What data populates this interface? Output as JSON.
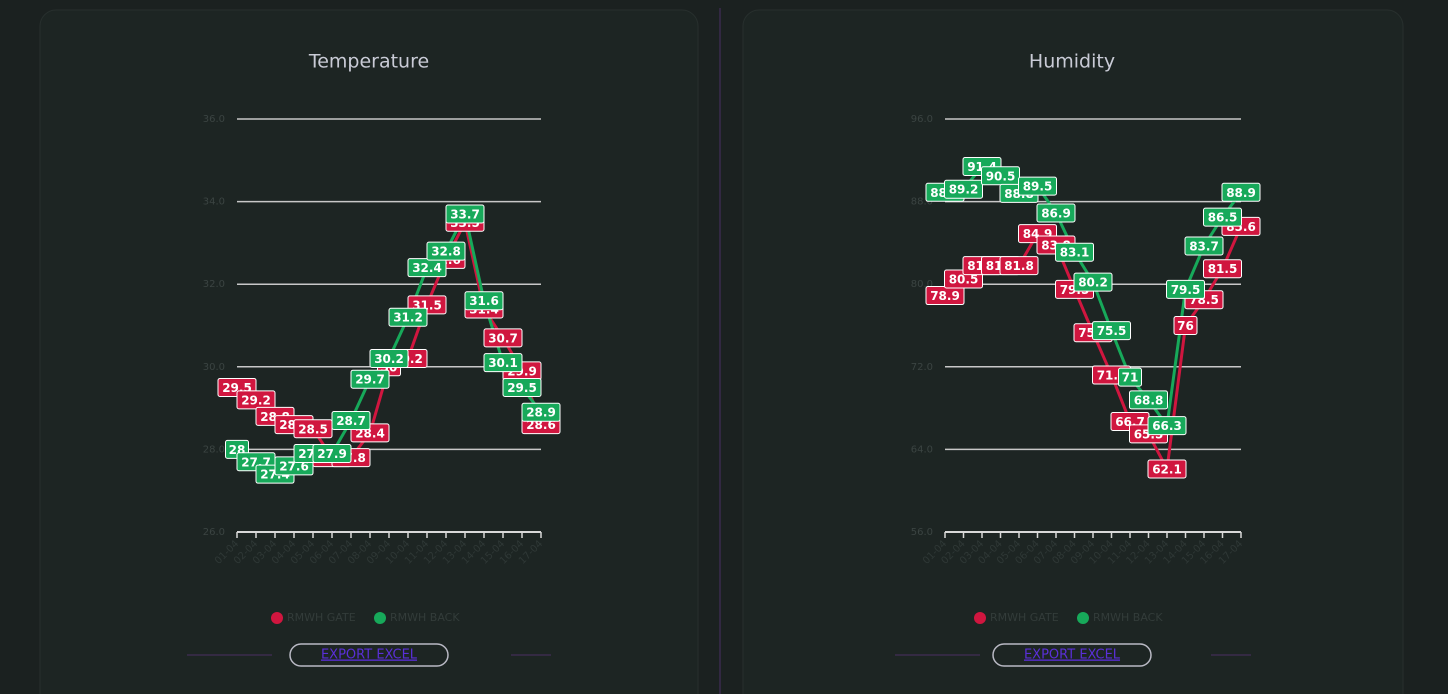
{
  "chart_data": [
    {
      "type": "line",
      "title": "Temperature",
      "categories": [
        "01-04",
        "02-04",
        "03-04",
        "04-04",
        "05-04",
        "06-04",
        "07-04",
        "08-04",
        "09-04",
        "10-04",
        "11-04",
        "12-04",
        "13-04",
        "14-04",
        "15-04",
        "16-04",
        "17-04"
      ],
      "series": [
        {
          "name": "RMWH GATE",
          "color": "#d0163f",
          "values": [
            29.5,
            29.2,
            28.8,
            28.6,
            28.5,
            27.8,
            27.8,
            28.4,
            30.0,
            30.2,
            31.5,
            32.6,
            33.5,
            31.4,
            30.7,
            29.9,
            28.6
          ]
        },
        {
          "name": "RMWH BACK",
          "color": "#17a95a",
          "values": [
            28.0,
            27.7,
            27.4,
            27.6,
            27.9,
            27.9,
            28.7,
            29.7,
            30.2,
            31.2,
            32.4,
            32.8,
            33.7,
            31.6,
            30.1,
            29.5,
            28.9
          ]
        }
      ],
      "ylim": [
        26,
        36
      ],
      "yticks": [
        {
          "value": 26,
          "label": "26.0"
        },
        {
          "value": 28,
          "label": "28.0"
        },
        {
          "value": 30,
          "label": "30.0"
        },
        {
          "value": 32,
          "label": "32.0"
        },
        {
          "value": 34,
          "label": "34.0"
        },
        {
          "value": 36,
          "label": "36.0"
        }
      ],
      "grid": true,
      "legend": "bottom"
    },
    {
      "type": "line",
      "title": "Humidity",
      "categories": [
        "01-04",
        "02-04",
        "03-04",
        "04-04",
        "05-04",
        "06-04",
        "07-04",
        "08-04",
        "09-04",
        "10-04",
        "11-04",
        "12-04",
        "13-04",
        "14-04",
        "15-04",
        "16-04",
        "17-04"
      ],
      "series": [
        {
          "name": "RMWH GATE",
          "color": "#d0163f",
          "values": [
            78.9,
            80.5,
            81.8,
            81.8,
            81.8,
            84.9,
            83.8,
            79.5,
            75.3,
            71.2,
            66.7,
            65.5,
            62.1,
            76.0,
            78.5,
            81.5,
            85.6
          ]
        },
        {
          "name": "RMWH BACK",
          "color": "#17a95a",
          "values": [
            88.9,
            89.2,
            91.4,
            90.5,
            88.8,
            89.5,
            86.9,
            83.1,
            80.2,
            75.5,
            71.0,
            68.8,
            66.3,
            79.5,
            83.7,
            86.5,
            88.9
          ]
        }
      ],
      "ylim": [
        56,
        96
      ],
      "yticks": [
        {
          "value": 56,
          "label": "56.0"
        },
        {
          "value": 64,
          "label": "64.0"
        },
        {
          "value": 72,
          "label": "72.0"
        },
        {
          "value": 80,
          "label": "80.0"
        },
        {
          "value": 88,
          "label": "88.0"
        },
        {
          "value": 96,
          "label": "96.0"
        }
      ],
      "grid": true,
      "legend": "bottom"
    }
  ],
  "export_buttons": [
    "EXPORT EXCEL",
    "EXPORT EXCEL"
  ]
}
